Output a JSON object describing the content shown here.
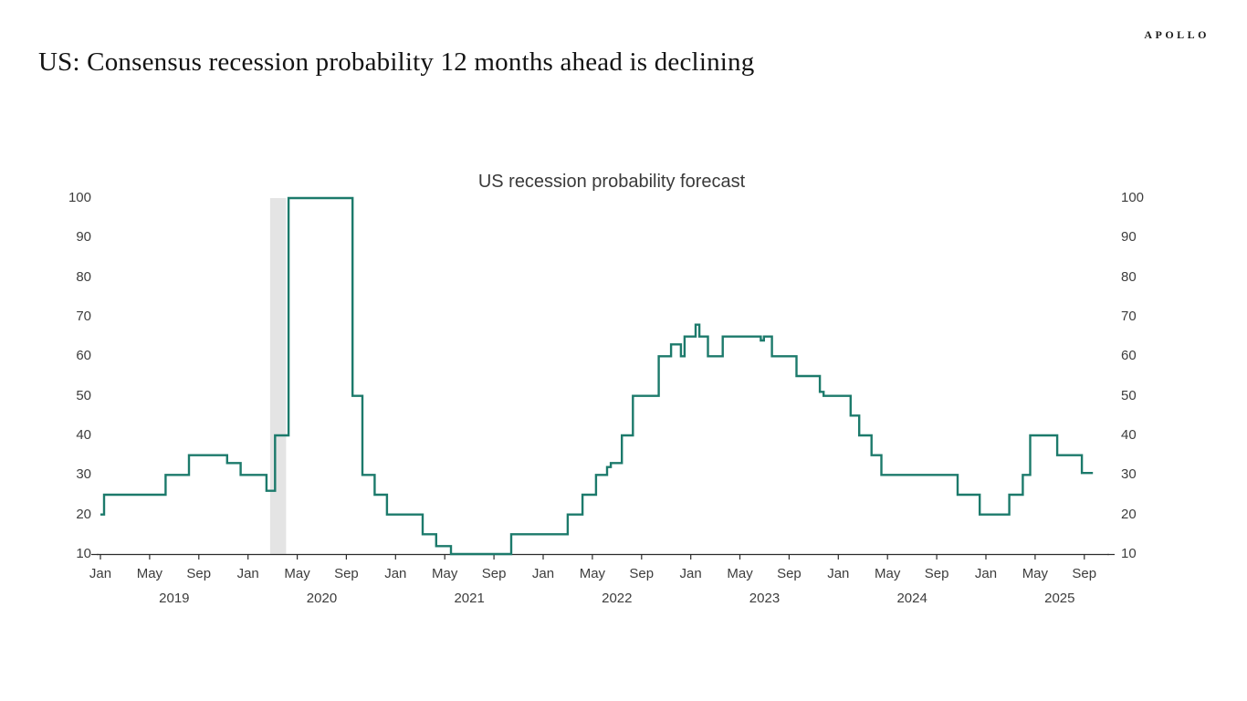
{
  "header": {
    "title": "US: Consensus recession probability 12 months ahead is declining",
    "logo": "APOLLO"
  },
  "chart_data": {
    "type": "line",
    "subtype": "step-after",
    "title": "US recession probability forecast",
    "x_unit": "months since Jan 2019 (0 = Jan 2019, 80 = Sep 2025)",
    "x_start_label": "Jan 2019",
    "x_end_label": "Sep 2025",
    "ylim": [
      10,
      100
    ],
    "y_ticks": [
      10,
      20,
      30,
      40,
      50,
      60,
      70,
      80,
      90,
      100
    ],
    "y_axis_sides": "both",
    "grid": false,
    "legend": "none",
    "line_color": "#1c7a6b",
    "band_color": "#e4e4e4",
    "axis_color": "#2b2b2b",
    "recession_band": {
      "start": 13.8,
      "end": 15.1,
      "meaning": "2020 recession shading"
    },
    "x_tick_positions": [
      0,
      4,
      8,
      12,
      16,
      20,
      24,
      28,
      32,
      36,
      40,
      44,
      48,
      52,
      56,
      60,
      64,
      68,
      72,
      76,
      80
    ],
    "x_tick_labels": [
      "Jan",
      "May",
      "Sep",
      "Jan",
      "May",
      "Sep",
      "Jan",
      "May",
      "Sep",
      "Jan",
      "May",
      "Sep",
      "Jan",
      "May",
      "Sep",
      "Jan",
      "May",
      "Sep",
      "Jan",
      "May",
      "Sep"
    ],
    "year_positions": [
      6,
      18,
      30,
      42,
      54,
      66,
      78
    ],
    "year_labels": [
      "2019",
      "2020",
      "2021",
      "2022",
      "2023",
      "2024",
      "2025"
    ],
    "steps": [
      [
        0,
        20
      ],
      [
        0.3,
        25
      ],
      [
        5.3,
        30
      ],
      [
        7.2,
        35
      ],
      [
        10.3,
        33
      ],
      [
        11.4,
        30
      ],
      [
        13.5,
        26
      ],
      [
        14.2,
        40
      ],
      [
        15.3,
        100
      ],
      [
        20.5,
        50
      ],
      [
        21.3,
        30
      ],
      [
        22.3,
        25
      ],
      [
        23.3,
        20
      ],
      [
        26.2,
        15
      ],
      [
        27.3,
        12
      ],
      [
        28.5,
        10
      ],
      [
        33.4,
        15
      ],
      [
        38,
        20
      ],
      [
        39.2,
        25
      ],
      [
        40.3,
        30
      ],
      [
        41.2,
        32
      ],
      [
        41.5,
        33
      ],
      [
        42.4,
        40
      ],
      [
        43.3,
        50
      ],
      [
        45.4,
        60
      ],
      [
        46.4,
        63
      ],
      [
        47.2,
        60
      ],
      [
        47.5,
        65
      ],
      [
        48.4,
        68
      ],
      [
        48.7,
        65
      ],
      [
        49.4,
        60
      ],
      [
        50.6,
        65
      ],
      [
        53.7,
        64
      ],
      [
        53.95,
        65
      ],
      [
        54.6,
        60
      ],
      [
        56.6,
        55
      ],
      [
        58.5,
        51
      ],
      [
        58.8,
        50
      ],
      [
        61,
        45
      ],
      [
        61.7,
        40
      ],
      [
        62.7,
        35
      ],
      [
        63.5,
        30
      ],
      [
        69.7,
        25
      ],
      [
        71.5,
        20
      ],
      [
        73.9,
        25
      ],
      [
        75,
        30
      ],
      [
        75.6,
        40
      ],
      [
        77.8,
        35
      ],
      [
        79.8,
        30.5
      ],
      [
        80.7,
        30.5
      ]
    ]
  }
}
